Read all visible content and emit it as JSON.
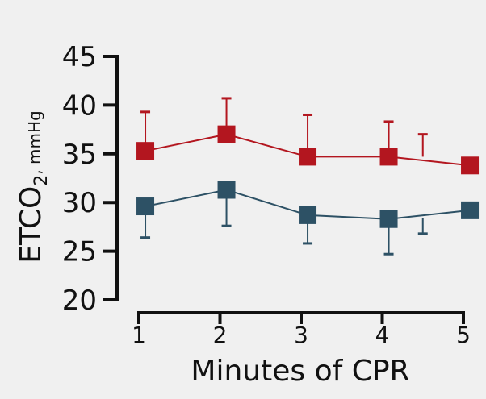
{
  "chart_data": {
    "type": "line",
    "title": "",
    "xlabel": "Minutes of CPR",
    "ylabel_main": "ETCO",
    "ylabel_sub": "2",
    "ylabel_unit": ", mmHg",
    "xlim": [
      1,
      5
    ],
    "ylim": [
      20,
      45
    ],
    "xticks": [
      "1",
      "2",
      "3",
      "4",
      "5"
    ],
    "yticks": [
      "20",
      "25",
      "30",
      "35",
      "40",
      "45"
    ],
    "grid": false,
    "series": [
      {
        "name": "red-series",
        "color": "#b3161f",
        "x": [
          1.08,
          2.08,
          3.08,
          4.08,
          5.08
        ],
        "values": [
          35.3,
          37.0,
          34.7,
          34.7,
          33.8
        ],
        "error_bars": [
          {
            "x": 1.08,
            "from": 35.3,
            "to": 39.3
          },
          {
            "x": 2.08,
            "from": 37.0,
            "to": 40.7
          },
          {
            "x": 3.08,
            "from": 34.7,
            "to": 39.0
          },
          {
            "x": 4.08,
            "from": 34.7,
            "to": 38.3
          },
          {
            "x": 4.5,
            "from": 34.7,
            "to": 37.0
          }
        ]
      },
      {
        "name": "blue-series",
        "color": "#2d5165",
        "x": [
          1.08,
          2.08,
          3.08,
          4.08,
          5.08
        ],
        "values": [
          29.6,
          31.3,
          28.7,
          28.3,
          29.2
        ],
        "error_bars": [
          {
            "x": 1.08,
            "from": 29.6,
            "to": 26.4
          },
          {
            "x": 2.08,
            "from": 31.3,
            "to": 27.6
          },
          {
            "x": 3.08,
            "from": 28.7,
            "to": 25.8
          },
          {
            "x": 4.08,
            "from": 28.3,
            "to": 24.7
          },
          {
            "x": 4.5,
            "from": 28.4,
            "to": 26.8
          }
        ]
      }
    ]
  }
}
